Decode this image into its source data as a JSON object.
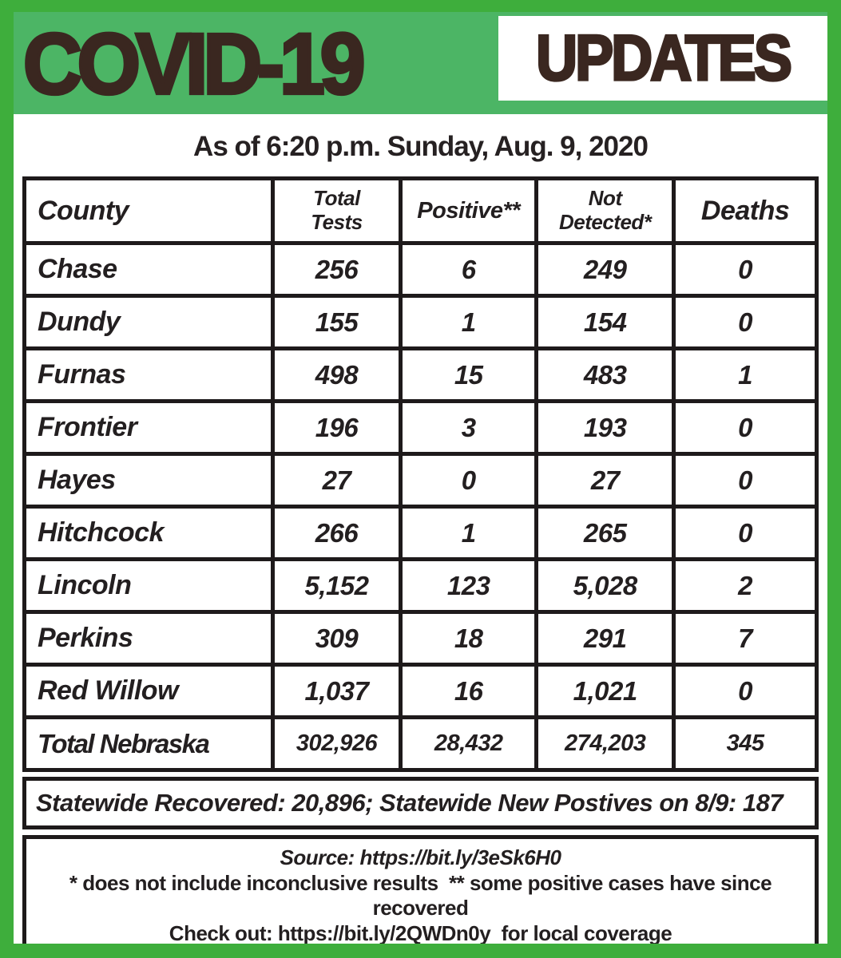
{
  "header": {
    "title": "COVID-19",
    "badge": "UPDATES"
  },
  "subtitle": "As of 6:20 p.m. Sunday, Aug. 9, 2020",
  "table": {
    "columns": [
      "County",
      "Total\nTests",
      "Positive**",
      "Not\nDetected*",
      "Deaths"
    ],
    "rows": [
      {
        "county": "Chase",
        "total_tests": "256",
        "positive": "6",
        "not_detected": "249",
        "deaths": "0"
      },
      {
        "county": "Dundy",
        "total_tests": "155",
        "positive": "1",
        "not_detected": "154",
        "deaths": "0"
      },
      {
        "county": "Furnas",
        "total_tests": "498",
        "positive": "15",
        "not_detected": "483",
        "deaths": "1"
      },
      {
        "county": "Frontier",
        "total_tests": "196",
        "positive": "3",
        "not_detected": "193",
        "deaths": "0"
      },
      {
        "county": "Hayes",
        "total_tests": "27",
        "positive": "0",
        "not_detected": "27",
        "deaths": "0"
      },
      {
        "county": "Hitchcock",
        "total_tests": "266",
        "positive": "1",
        "not_detected": "265",
        "deaths": "0"
      },
      {
        "county": "Lincoln",
        "total_tests": "5,152",
        "positive": "123",
        "not_detected": "5,028",
        "deaths": "2"
      },
      {
        "county": "Perkins",
        "total_tests": "309",
        "positive": "18",
        "not_detected": "291",
        "deaths": "7"
      },
      {
        "county": "Red Willow",
        "total_tests": "1,037",
        "positive": "16",
        "not_detected": "1,021",
        "deaths": "0"
      },
      {
        "county": "Total Nebraska",
        "total_tests": "302,926",
        "positive": "28,432",
        "not_detected": "274,203",
        "deaths": "345"
      }
    ]
  },
  "statewide": "Statewide Recovered: 20,896; Statewide New Postives on 8/9: 187",
  "footer": {
    "source": "Source: https://bit.ly/3eSk6H0",
    "footnotes": "* does not include inconclusive results  ** some positive cases have since recovered",
    "coverage": "Check out: https://bit.ly/2QWDn0y  for local coverage"
  },
  "colors": {
    "frame_green": "#3EAE3C",
    "band_green": "#4CB565",
    "title_brown": "#3A2720",
    "text_dark": "#231F20"
  }
}
